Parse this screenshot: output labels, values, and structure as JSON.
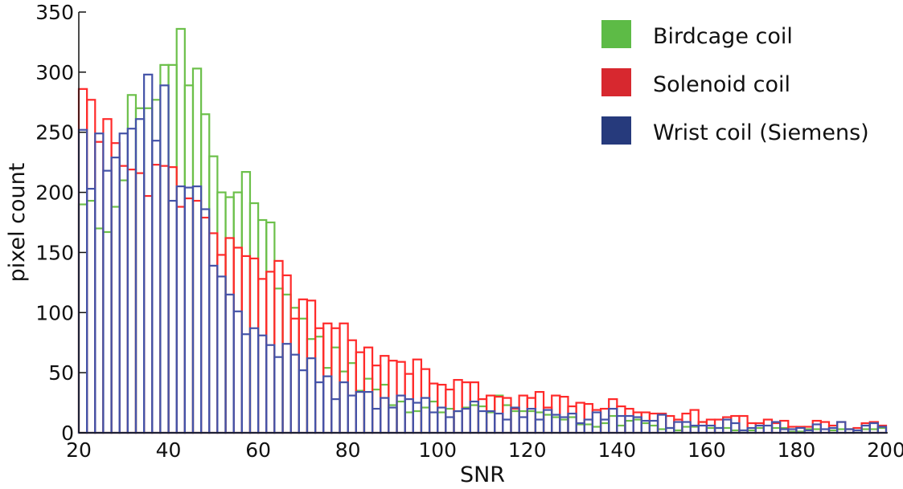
{
  "chart_data": {
    "type": "bar",
    "subtype": "histogram-outline",
    "title": "",
    "xlabel": "SNR",
    "ylabel": "pixel count",
    "xlim": [
      20,
      200
    ],
    "ylim": [
      0,
      350
    ],
    "xticks": [
      "20",
      "40",
      "60",
      "80",
      "100",
      "120",
      "140",
      "160",
      "180",
      "200"
    ],
    "yticks": [
      "0",
      "50",
      "100",
      "150",
      "200",
      "250",
      "300",
      "350"
    ],
    "bin_start": 20,
    "bin_end": 200,
    "n_bins": 99,
    "legend_position": "top-right",
    "series": [
      {
        "name": "Birdcage coil",
        "color": "#5dbb46",
        "stroke": "#6cc04a",
        "values": [
          190,
          193,
          170,
          167,
          188,
          210,
          281,
          270,
          270,
          277,
          306,
          306,
          336,
          289,
          303,
          265,
          230,
          200,
          196,
          200,
          217,
          191,
          177,
          175,
          120,
          115,
          104,
          95,
          78,
          80,
          54,
          71,
          51,
          58,
          35,
          45,
          36,
          40,
          23,
          26,
          17,
          18,
          21,
          26,
          17,
          20,
          18,
          21,
          23,
          22,
          17,
          31,
          23,
          18,
          18,
          18,
          17,
          15,
          13,
          11,
          13,
          7,
          7,
          5,
          8,
          14,
          6,
          10,
          11,
          8,
          6,
          3,
          4,
          2,
          5,
          5,
          9,
          4,
          4,
          4,
          2,
          2,
          2,
          4,
          0,
          4,
          4,
          1,
          1,
          3,
          3,
          0,
          2,
          3,
          3,
          2,
          3,
          3,
          4
        ]
      },
      {
        "name": "Solenoid coil",
        "color": "#d7282f",
        "stroke": "#ff2a2a",
        "values": [
          286,
          277,
          242,
          261,
          241,
          222,
          219,
          216,
          197,
          223,
          222,
          221,
          188,
          195,
          193,
          179,
          166,
          148,
          162,
          154,
          147,
          145,
          128,
          134,
          143,
          131,
          95,
          111,
          110,
          87,
          91,
          87,
          91,
          77,
          67,
          71,
          56,
          64,
          60,
          59,
          49,
          61,
          53,
          41,
          40,
          36,
          44,
          42,
          42,
          28,
          31,
          30,
          29,
          20,
          31,
          29,
          34,
          21,
          31,
          30,
          22,
          25,
          24,
          19,
          20,
          28,
          22,
          20,
          17,
          17,
          16,
          16,
          14,
          11,
          16,
          19,
          9,
          11,
          11,
          13,
          14,
          14,
          8,
          8,
          11,
          8,
          10,
          5,
          5,
          5,
          10,
          9,
          6,
          9,
          3,
          4,
          8,
          9,
          6
        ]
      },
      {
        "name": "Wrist coil (Siemens)",
        "color": "#263a7c",
        "stroke": "#4453a8",
        "values": [
          252,
          203,
          249,
          218,
          229,
          249,
          253,
          261,
          298,
          243,
          289,
          193,
          205,
          204,
          205,
          186,
          139,
          130,
          115,
          101,
          82,
          87,
          81,
          73,
          63,
          74,
          65,
          52,
          62,
          42,
          47,
          28,
          42,
          31,
          34,
          34,
          20,
          29,
          21,
          31,
          28,
          25,
          29,
          17,
          21,
          13,
          18,
          20,
          26,
          18,
          18,
          16,
          11,
          21,
          13,
          20,
          11,
          19,
          15,
          13,
          16,
          8,
          11,
          17,
          11,
          20,
          14,
          14,
          13,
          10,
          10,
          15,
          4,
          9,
          9,
          6,
          6,
          6,
          4,
          11,
          8,
          2,
          4,
          6,
          6,
          9,
          3,
          3,
          4,
          2,
          7,
          3,
          4,
          9,
          3,
          2,
          6,
          8,
          5
        ]
      }
    ]
  }
}
